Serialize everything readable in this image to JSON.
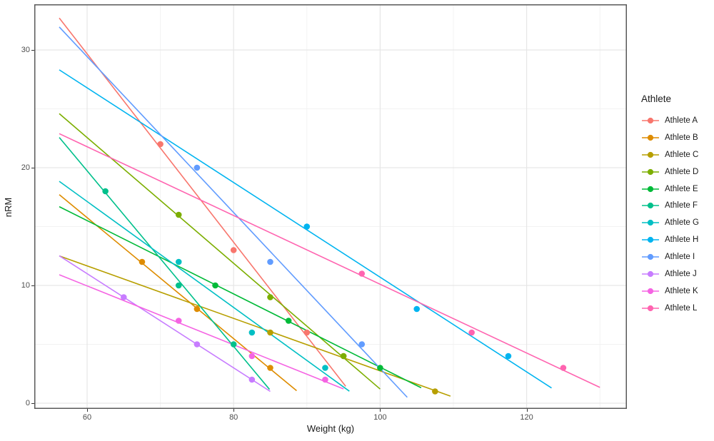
{
  "chart_data": {
    "type": "scatter",
    "title": "",
    "xlabel": "Weight (kg)",
    "ylabel": "nRM",
    "legend_title": "Athlete",
    "legend_position": "right",
    "grid": true,
    "xlim": [
      52.8,
      133.6
    ],
    "ylim": [
      -0.5,
      33.9
    ],
    "x_ticks": [
      60,
      80,
      100,
      120
    ],
    "y_ticks": [
      0,
      10,
      20,
      30
    ],
    "x_minor_ticks": [
      70,
      90,
      110,
      130
    ],
    "y_minor_ticks": [
      5,
      15,
      25
    ],
    "series": [
      {
        "name": "Athlete A",
        "color": "#F8766D",
        "points": [
          [
            70,
            22
          ],
          [
            80,
            13
          ],
          [
            90,
            6
          ]
        ],
        "trend": {
          "x1": 56.2,
          "y1": 32.71,
          "x2": 95.3,
          "y2": 1.43
        }
      },
      {
        "name": "Athlete B",
        "color": "#DE8C00",
        "points": [
          [
            67.5,
            12
          ],
          [
            75,
            8
          ],
          [
            85,
            3
          ]
        ],
        "trend": {
          "x1": 56.2,
          "y1": 17.71,
          "x2": 88.6,
          "y2": 1.06
        }
      },
      {
        "name": "Athlete C",
        "color": "#B79F00",
        "points": [
          [
            85,
            6
          ],
          [
            95,
            4
          ],
          [
            107.5,
            1
          ]
        ],
        "trend": {
          "x1": 56.2,
          "y1": 12.51,
          "x2": 109.6,
          "y2": 0.6
        }
      },
      {
        "name": "Athlete D",
        "color": "#7CAE00",
        "points": [
          [
            72.5,
            16
          ],
          [
            85,
            9
          ],
          [
            95,
            4
          ]
        ],
        "trend": {
          "x1": 56.2,
          "y1": 24.59,
          "x2": 100.0,
          "y2": 1.2
        }
      },
      {
        "name": "Athlete E",
        "color": "#00BA38",
        "points": [
          [
            77.5,
            10
          ],
          [
            87.5,
            7
          ],
          [
            100,
            3
          ]
        ],
        "trend": {
          "x1": 56.2,
          "y1": 16.69,
          "x2": 105.6,
          "y2": 1.31
        }
      },
      {
        "name": "Athlete F",
        "color": "#00C08B",
        "points": [
          [
            62.5,
            18
          ],
          [
            72.5,
            10
          ],
          [
            80,
            5
          ]
        ],
        "trend": {
          "x1": 56.2,
          "y1": 22.57,
          "x2": 84.9,
          "y2": 1.17
        }
      },
      {
        "name": "Athlete G",
        "color": "#00BFC4",
        "points": [
          [
            72.5,
            12
          ],
          [
            82.5,
            6
          ],
          [
            92.5,
            3
          ]
        ],
        "trend": {
          "x1": 56.2,
          "y1": 18.84,
          "x2": 95.8,
          "y2": 1.02
        }
      },
      {
        "name": "Athlete H",
        "color": "#00B4F0",
        "points": [
          [
            90,
            15
          ],
          [
            105,
            8
          ],
          [
            117.5,
            4
          ]
        ],
        "trend": {
          "x1": 56.2,
          "y1": 28.31,
          "x2": 123.4,
          "y2": 1.29
        }
      },
      {
        "name": "Athlete I",
        "color": "#619CFF",
        "points": [
          [
            75,
            20
          ],
          [
            85,
            12
          ],
          [
            97.5,
            5
          ]
        ],
        "trend": {
          "x1": 56.2,
          "y1": 31.95,
          "x2": 103.7,
          "y2": 0.5
        }
      },
      {
        "name": "Athlete J",
        "color": "#C77CFF",
        "points": [
          [
            65,
            9
          ],
          [
            75,
            5
          ],
          [
            82.5,
            2
          ]
        ],
        "trend": {
          "x1": 56.2,
          "y1": 12.52,
          "x2": 85.0,
          "y2": 1.0
        }
      },
      {
        "name": "Athlete K",
        "color": "#F564E3",
        "points": [
          [
            72.5,
            7
          ],
          [
            82.5,
            4
          ],
          [
            92.5,
            2
          ]
        ],
        "trend": {
          "x1": 56.2,
          "y1": 10.91,
          "x2": 95.0,
          "y2": 1.21
        }
      },
      {
        "name": "Athlete L",
        "color": "#FF64B0",
        "points": [
          [
            97.5,
            11
          ],
          [
            112.5,
            6
          ],
          [
            125,
            3
          ]
        ],
        "trend": {
          "x1": 56.2,
          "y1": 22.89,
          "x2": 130.0,
          "y2": 1.34
        }
      }
    ],
    "style": {
      "panel_bg": "#ffffff",
      "panel_border": "#595959",
      "grid_major": "#e6e6e6",
      "grid_minor": "#f2f2f2",
      "tick_color": "#333333",
      "tick_label_color": "#4d4d4d",
      "title_color": "#1a1a1a"
    }
  }
}
